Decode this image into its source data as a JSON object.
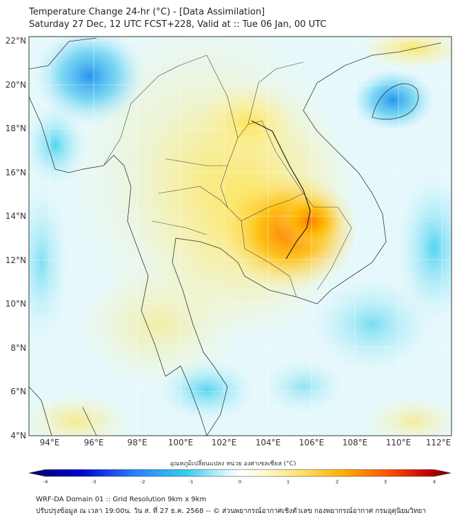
{
  "title_line1": "Temperature Change 24-hr (°C) - [Data Assimilation]",
  "title_line2": "Saturday 27 Dec, 12 UTC FCST+228, Valid at :: Tue 06 Jan, 00 UTC",
  "lat_labels": [
    "4°N",
    "6°N",
    "8°N",
    "10°N",
    "12°N",
    "14°N",
    "16°N",
    "18°N",
    "20°N",
    "22°N"
  ],
  "lon_labels": [
    "94°E",
    "96°E",
    "98°E",
    "100°E",
    "102°E",
    "104°E",
    "106°E",
    "108°E",
    "110°E",
    "112°E"
  ],
  "colorbar": {
    "label": "อุณหภูมิเปลี่ยนแปลง หน่วย องศาเซลเซียส (°C)",
    "ticks": [
      "-4",
      "-3",
      "-2",
      "-1",
      "0",
      "1",
      "2",
      "3",
      "4"
    ],
    "colors": [
      "#000066",
      "#0000cc",
      "#2a7fff",
      "#33ccee",
      "#d8f8ff",
      "#ffffff",
      "#fffacc",
      "#ffe066",
      "#ffaa00",
      "#ff5500",
      "#cc0000",
      "#660000"
    ]
  },
  "footer_line1": "WRF-DA Domain 01 :: Grid Resolution 9km x 9km",
  "footer_line2": "ปรับปรุงข้อมูล ณ เวลา 19:00น. วัน ส. ที่ 27 ธ.ค. 2568 -- © ส่วนพยากรณ์อากาศเชิงตัวเลข กองพยากรณ์อากาศ กรมอุตุนิยมวิทยา"
}
